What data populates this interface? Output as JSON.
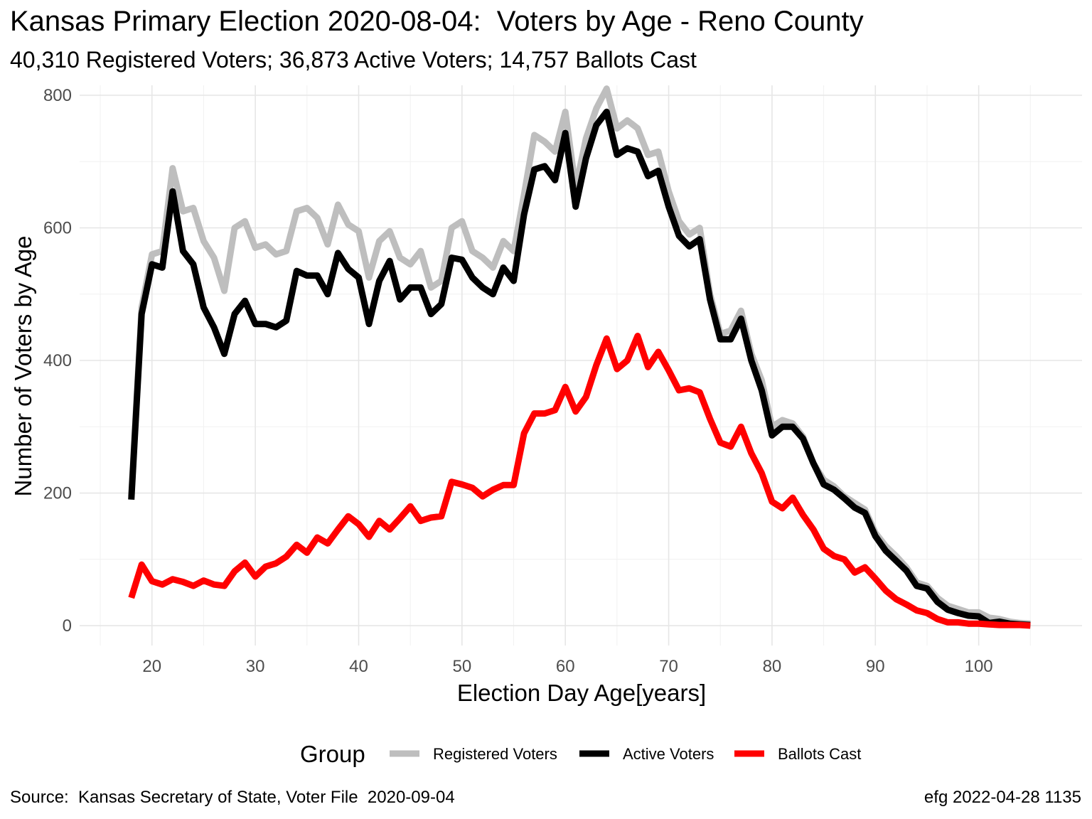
{
  "chart_data": {
    "type": "line",
    "title": "Kansas Primary Election 2020-08-04:  Voters by Age - Reno County",
    "subtitle": "40,310 Registered Voters; 36,873 Active Voters; 14,757 Ballots Cast",
    "xlabel": "Election Day Age[years]",
    "ylabel": "Number of Voters by Age",
    "xlim": [
      13,
      110
    ],
    "ylim": [
      -30,
      815
    ],
    "x_ticks": [
      20,
      30,
      40,
      50,
      60,
      70,
      80,
      90,
      100
    ],
    "y_ticks": [
      0,
      200,
      400,
      600,
      800
    ],
    "grid": true,
    "legend": {
      "title": "Group",
      "position": "bottom"
    },
    "x": [
      18,
      19,
      20,
      21,
      22,
      23,
      24,
      25,
      26,
      27,
      28,
      29,
      30,
      31,
      32,
      33,
      34,
      35,
      36,
      37,
      38,
      39,
      40,
      41,
      42,
      43,
      44,
      45,
      46,
      47,
      48,
      49,
      50,
      51,
      52,
      53,
      54,
      55,
      56,
      57,
      58,
      59,
      60,
      61,
      62,
      63,
      64,
      65,
      66,
      67,
      68,
      69,
      70,
      71,
      72,
      73,
      74,
      75,
      76,
      77,
      78,
      79,
      80,
      81,
      82,
      83,
      84,
      85,
      86,
      87,
      88,
      89,
      90,
      91,
      92,
      93,
      94,
      95,
      96,
      97,
      98,
      99,
      100,
      101,
      102,
      103,
      104,
      105
    ],
    "series": [
      {
        "name": "Registered Voters",
        "color": "#bebebe",
        "values": [
          195,
          480,
          560,
          565,
          690,
          625,
          630,
          580,
          555,
          505,
          600,
          610,
          570,
          575,
          560,
          565,
          625,
          630,
          615,
          575,
          635,
          605,
          595,
          525,
          580,
          595,
          555,
          545,
          565,
          510,
          520,
          600,
          610,
          565,
          555,
          540,
          580,
          565,
          650,
          740,
          730,
          715,
          775,
          660,
          735,
          780,
          810,
          750,
          762,
          750,
          710,
          715,
          655,
          610,
          590,
          600,
          500,
          440,
          445,
          475,
          410,
          370,
          300,
          310,
          305,
          285,
          245,
          220,
          210,
          195,
          185,
          175,
          140,
          120,
          105,
          88,
          65,
          60,
          42,
          30,
          25,
          20,
          20,
          12,
          10,
          6,
          4,
          3
        ]
      },
      {
        "name": "Active Voters",
        "color": "#000000",
        "values": [
          190,
          470,
          545,
          540,
          655,
          565,
          545,
          480,
          450,
          410,
          470,
          490,
          455,
          455,
          450,
          460,
          535,
          528,
          528,
          500,
          562,
          538,
          525,
          455,
          520,
          550,
          492,
          510,
          510,
          470,
          485,
          555,
          552,
          525,
          510,
          500,
          540,
          520,
          620,
          688,
          693,
          672,
          743,
          632,
          705,
          755,
          775,
          710,
          720,
          715,
          678,
          686,
          632,
          588,
          572,
          583,
          492,
          432,
          432,
          463,
          400,
          355,
          287,
          300,
          300,
          282,
          245,
          213,
          205,
          192,
          178,
          170,
          135,
          113,
          98,
          83,
          60,
          56,
          36,
          24,
          19,
          15,
          14,
          4,
          6,
          3,
          2,
          1
        ]
      },
      {
        "name": "Ballots Cast",
        "color": "#ff0000",
        "values": [
          42,
          92,
          67,
          62,
          70,
          66,
          60,
          68,
          62,
          60,
          82,
          95,
          74,
          89,
          94,
          104,
          122,
          110,
          133,
          124,
          145,
          165,
          153,
          134,
          158,
          145,
          162,
          180,
          158,
          163,
          165,
          217,
          213,
          208,
          195,
          205,
          212,
          212,
          290,
          320,
          320,
          325,
          360,
          323,
          345,
          393,
          433,
          387,
          400,
          437,
          390,
          413,
          385,
          355,
          358,
          352,
          312,
          276,
          270,
          300,
          260,
          230,
          187,
          177,
          193,
          167,
          145,
          116,
          105,
          100,
          80,
          88,
          71,
          53,
          40,
          32,
          23,
          19,
          10,
          5,
          5,
          3,
          3,
          2,
          1,
          1,
          1,
          0
        ]
      }
    ]
  },
  "caption_left": "Source:  Kansas Secretary of State, Voter File  2020-09-04",
  "caption_right": "efg 2022-04-28 1135"
}
